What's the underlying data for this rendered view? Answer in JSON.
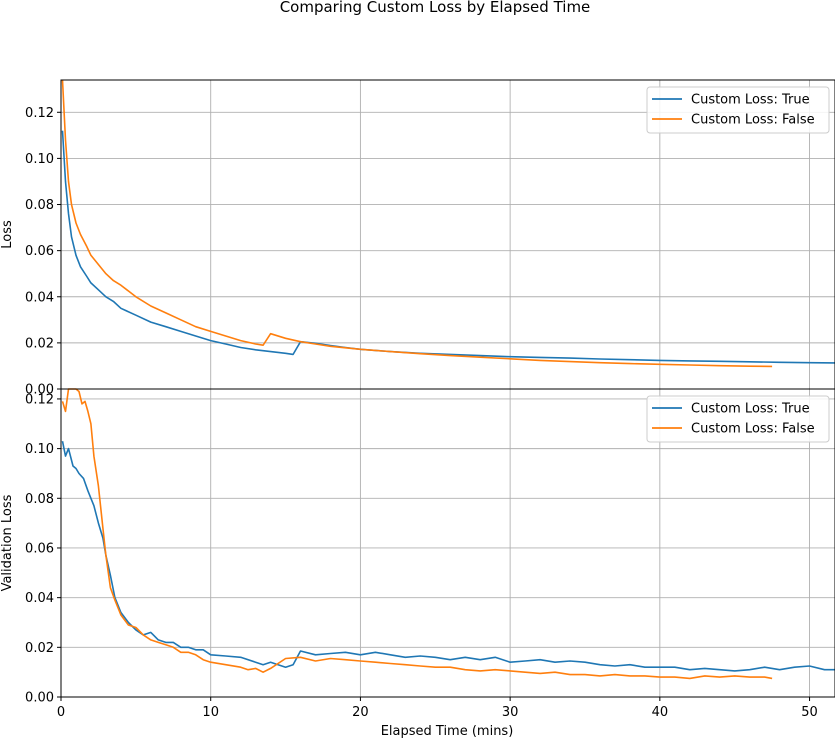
{
  "chart_data": {
    "type": "line",
    "title": "Comparing Custom Loss by Elapsed Time",
    "xlabel": "Elapsed Time (mins)",
    "xlim": [
      0,
      51.7
    ],
    "xticks": [
      0,
      10,
      20,
      30,
      40,
      50
    ],
    "xtick_labels": [
      "0",
      "10",
      "20",
      "30",
      "40",
      "50"
    ],
    "grid": true,
    "series_colors": [
      "#1f77b4",
      "#ff7f0e"
    ],
    "legend_position": "top-right",
    "panels": [
      {
        "ylabel": "Loss",
        "ylim": [
          0,
          0.134
        ],
        "yticks": [
          0,
          0.02,
          0.04,
          0.06,
          0.08,
          0.1,
          0.12
        ],
        "ytick_labels": [
          "0.00",
          "0.02",
          "0.04",
          "0.06",
          "0.08",
          "0.10",
          "0.12"
        ],
        "legend": [
          "Custom Loss: True",
          "Custom Loss: False"
        ],
        "series": [
          {
            "name": "Custom Loss: True",
            "x": [
              0.1,
              0.3,
              0.5,
              0.7,
              1.0,
              1.3,
              1.7,
              2.0,
              2.5,
              3.0,
              3.5,
              4.0,
              5.0,
              6.0,
              7.0,
              8.0,
              9.0,
              10.0,
              11.0,
              12.0,
              13.0,
              14.0,
              15.0,
              15.5,
              16.0,
              17.0,
              18.0,
              19.0,
              20.0,
              22.0,
              24.0,
              26.0,
              28.0,
              30.0,
              32.0,
              34.0,
              36.0,
              38.0,
              40.0,
              42.0,
              44.0,
              46.0,
              48.0,
              50.0,
              51.7
            ],
            "y": [
              0.112,
              0.09,
              0.076,
              0.066,
              0.058,
              0.053,
              0.049,
              0.046,
              0.043,
              0.04,
              0.038,
              0.035,
              0.032,
              0.029,
              0.027,
              0.025,
              0.023,
              0.021,
              0.0195,
              0.018,
              0.017,
              0.0162,
              0.0155,
              0.015,
              0.0205,
              0.0198,
              0.0188,
              0.018,
              0.0172,
              0.0162,
              0.0155,
              0.015,
              0.0145,
              0.014,
              0.0137,
              0.0134,
              0.013,
              0.0127,
              0.0124,
              0.0122,
              0.012,
              0.0118,
              0.0116,
              0.0114,
              0.0113
            ]
          },
          {
            "name": "Custom Loss: False",
            "x": [
              0.1,
              0.3,
              0.5,
              0.7,
              1.0,
              1.3,
              1.7,
              2.0,
              2.5,
              3.0,
              3.5,
              4.0,
              5.0,
              6.0,
              7.0,
              8.0,
              9.0,
              10.0,
              11.0,
              12.0,
              13.0,
              13.5,
              14.0,
              15.0,
              16.0,
              17.0,
              18.0,
              20.0,
              22.0,
              24.0,
              26.0,
              28.0,
              30.0,
              32.0,
              34.0,
              36.0,
              38.0,
              40.0,
              42.0,
              44.0,
              46.0,
              47.5
            ],
            "y": [
              0.134,
              0.108,
              0.09,
              0.08,
              0.072,
              0.067,
              0.062,
              0.058,
              0.054,
              0.05,
              0.047,
              0.045,
              0.04,
              0.036,
              0.033,
              0.03,
              0.027,
              0.025,
              0.023,
              0.021,
              0.0195,
              0.019,
              0.024,
              0.022,
              0.0205,
              0.0195,
              0.0185,
              0.0172,
              0.0162,
              0.0153,
              0.0145,
              0.0138,
              0.0131,
              0.0124,
              0.0119,
              0.0114,
              0.011,
              0.0107,
              0.0104,
              0.0101,
              0.0099,
              0.0098
            ]
          }
        ]
      },
      {
        "ylabel": "Validation Loss",
        "ylim": [
          0,
          0.124
        ],
        "yticks": [
          0,
          0.02,
          0.04,
          0.06,
          0.08,
          0.1,
          0.12
        ],
        "ytick_labels": [
          "0.00",
          "0.02",
          "0.04",
          "0.06",
          "0.08",
          "0.10",
          "0.12"
        ],
        "legend": [
          "Custom Loss: True",
          "Custom Loss: False"
        ],
        "series": [
          {
            "name": "Custom Loss: True",
            "x": [
              0.1,
              0.3,
              0.5,
              0.8,
              1.0,
              1.2,
              1.5,
              1.8,
              2.0,
              2.2,
              2.5,
              2.8,
              3.0,
              3.3,
              3.6,
              4.0,
              4.5,
              5.0,
              5.5,
              6.0,
              6.5,
              7.0,
              7.5,
              8.0,
              8.5,
              9.0,
              9.5,
              10.0,
              11.0,
              12.0,
              13.0,
              13.5,
              14.0,
              15.0,
              15.5,
              16.0,
              17.0,
              18.0,
              19.0,
              20.0,
              21.0,
              22.0,
              23.0,
              24.0,
              25.0,
              26.0,
              27.0,
              28.0,
              29.0,
              30.0,
              31.0,
              32.0,
              33.0,
              34.0,
              35.0,
              36.0,
              37.0,
              38.0,
              39.0,
              40.0,
              41.0,
              42.0,
              43.0,
              44.0,
              45.0,
              46.0,
              47.0,
              48.0,
              49.0,
              50.0,
              51.0,
              51.7
            ],
            "y": [
              0.103,
              0.097,
              0.1,
              0.093,
              0.092,
              0.09,
              0.088,
              0.083,
              0.08,
              0.077,
              0.07,
              0.064,
              0.057,
              0.049,
              0.04,
              0.034,
              0.03,
              0.027,
              0.025,
              0.026,
              0.023,
              0.022,
              0.022,
              0.02,
              0.02,
              0.019,
              0.019,
              0.017,
              0.0165,
              0.016,
              0.014,
              0.013,
              0.014,
              0.012,
              0.013,
              0.0185,
              0.017,
              0.0175,
              0.018,
              0.017,
              0.018,
              0.017,
              0.016,
              0.0165,
              0.016,
              0.015,
              0.016,
              0.015,
              0.016,
              0.014,
              0.0145,
              0.015,
              0.014,
              0.0145,
              0.014,
              0.013,
              0.0125,
              0.013,
              0.012,
              0.012,
              0.012,
              0.011,
              0.0115,
              0.011,
              0.0105,
              0.011,
              0.012,
              0.011,
              0.012,
              0.0125,
              0.011,
              0.011
            ]
          },
          {
            "name": "Custom Loss: False",
            "x": [
              0.1,
              0.3,
              0.5,
              0.8,
              1.0,
              1.2,
              1.4,
              1.6,
              1.8,
              2.0,
              2.2,
              2.5,
              2.8,
              3.0,
              3.3,
              3.6,
              4.0,
              4.5,
              5.0,
              5.5,
              6.0,
              6.5,
              7.0,
              7.5,
              8.0,
              8.5,
              9.0,
              9.5,
              10.0,
              11.0,
              12.0,
              12.5,
              13.0,
              13.5,
              14.0,
              15.0,
              16.0,
              17.0,
              18.0,
              19.0,
              20.0,
              21.0,
              22.0,
              23.0,
              24.0,
              25.0,
              26.0,
              27.0,
              28.0,
              29.0,
              30.0,
              31.0,
              32.0,
              33.0,
              34.0,
              35.0,
              36.0,
              37.0,
              38.0,
              39.0,
              40.0,
              41.0,
              42.0,
              43.0,
              44.0,
              45.0,
              46.0,
              47.0,
              47.5
            ],
            "y": [
              0.119,
              0.115,
              0.124,
              0.124,
              0.124,
              0.123,
              0.118,
              0.119,
              0.115,
              0.11,
              0.097,
              0.085,
              0.068,
              0.057,
              0.044,
              0.039,
              0.033,
              0.029,
              0.028,
              0.025,
              0.023,
              0.022,
              0.021,
              0.02,
              0.018,
              0.018,
              0.017,
              0.015,
              0.014,
              0.013,
              0.012,
              0.011,
              0.0115,
              0.01,
              0.0115,
              0.0155,
              0.016,
              0.0145,
              0.0155,
              0.015,
              0.0145,
              0.014,
              0.0135,
              0.013,
              0.0125,
              0.012,
              0.012,
              0.011,
              0.0105,
              0.011,
              0.0105,
              0.01,
              0.0095,
              0.01,
              0.009,
              0.009,
              0.0085,
              0.009,
              0.0085,
              0.0085,
              0.008,
              0.008,
              0.0075,
              0.0085,
              0.008,
              0.0085,
              0.008,
              0.008,
              0.0075
            ]
          }
        ]
      }
    ]
  }
}
